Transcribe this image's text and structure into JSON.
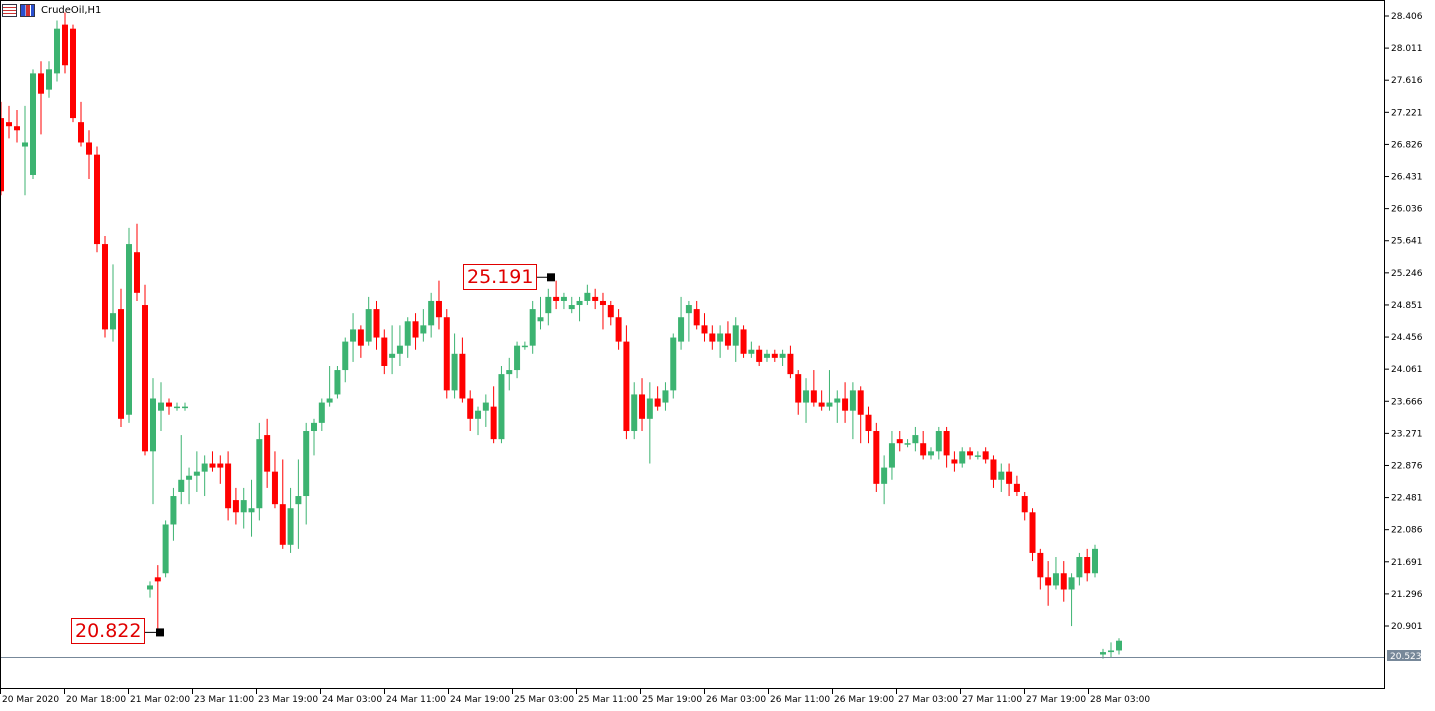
{
  "header": {
    "symbol": "CrudeOil,H1"
  },
  "annotations": {
    "high": "25.191",
    "low": "20.822"
  },
  "current_price": "20.523",
  "colors": {
    "bull": "#3cb371",
    "bear": "#ff0000",
    "grid": "#ffffff",
    "axis": "#000000",
    "price_line": "#778899"
  },
  "chart_data": {
    "type": "candlestick",
    "symbol": "CrudeOil",
    "timeframe": "H1",
    "y_ticks": [
      "28.406",
      "28.011",
      "27.616",
      "27.221",
      "26.826",
      "26.431",
      "26.036",
      "25.641",
      "25.246",
      "24.851",
      "24.456",
      "24.061",
      "23.666",
      "23.271",
      "22.876",
      "22.481",
      "22.086",
      "21.691",
      "21.296",
      "20.901"
    ],
    "x_ticks": [
      "20 Mar 2020",
      "20 Mar 18:00",
      "21 Mar 02:00",
      "23 Mar 11:00",
      "23 Mar 19:00",
      "24 Mar 03:00",
      "24 Mar 11:00",
      "24 Mar 19:00",
      "25 Mar 03:00",
      "25 Mar 11:00",
      "25 Mar 19:00",
      "26 Mar 03:00",
      "26 Mar 11:00",
      "26 Mar 19:00",
      "27 Mar 03:00",
      "27 Mar 11:00",
      "27 Mar 19:00",
      "28 Mar 03:00"
    ],
    "ylim": [
      20.45,
      28.5
    ],
    "high_marker": 25.191,
    "low_marker": 20.822,
    "last_price": 20.523,
    "candles": [
      [
        27.15,
        27.35,
        26.2,
        26.25
      ],
      [
        27.1,
        27.3,
        26.9,
        27.05
      ],
      [
        27.05,
        27.25,
        26.85,
        27.0
      ],
      [
        26.8,
        27.3,
        26.2,
        26.85
      ],
      [
        26.45,
        27.75,
        26.4,
        27.7
      ],
      [
        27.7,
        27.85,
        26.95,
        27.45
      ],
      [
        27.5,
        27.85,
        27.4,
        27.75
      ],
      [
        27.7,
        28.35,
        27.6,
        28.25
      ],
      [
        28.3,
        28.45,
        27.7,
        27.8
      ],
      [
        28.25,
        28.3,
        27.1,
        27.15
      ],
      [
        27.1,
        27.35,
        26.8,
        26.85
      ],
      [
        26.85,
        27.0,
        26.4,
        26.7
      ],
      [
        26.7,
        26.8,
        25.5,
        25.6
      ],
      [
        25.6,
        25.7,
        24.45,
        24.55
      ],
      [
        24.55,
        25.35,
        24.4,
        24.75
      ],
      [
        24.8,
        25.05,
        23.35,
        23.45
      ],
      [
        23.5,
        25.8,
        23.4,
        25.6
      ],
      [
        25.5,
        25.85,
        24.9,
        25.0
      ],
      [
        24.85,
        25.1,
        23.0,
        23.05
      ],
      [
        23.05,
        23.95,
        22.4,
        23.7
      ],
      [
        23.55,
        23.9,
        23.3,
        23.65
      ],
      [
        23.65,
        23.7,
        23.5,
        23.6
      ],
      [
        23.6,
        23.65,
        23.55,
        23.6
      ],
      [
        23.6,
        23.65,
        23.55,
        23.6
      ],
      [
        21.35,
        21.45,
        21.25,
        21.4
      ],
      [
        21.5,
        21.65,
        20.82,
        21.45
      ],
      [
        21.55,
        22.2,
        21.5,
        22.15
      ],
      [
        22.15,
        22.6,
        21.95,
        22.5
      ],
      [
        22.55,
        23.25,
        22.4,
        22.7
      ],
      [
        22.7,
        22.85,
        22.4,
        22.75
      ],
      [
        22.75,
        23.05,
        22.55,
        22.8
      ],
      [
        22.8,
        23.0,
        22.5,
        22.9
      ],
      [
        22.9,
        23.05,
        22.8,
        22.85
      ],
      [
        22.9,
        23.0,
        22.65,
        22.85
      ],
      [
        22.9,
        23.05,
        22.2,
        22.35
      ],
      [
        22.45,
        22.6,
        22.15,
        22.3
      ],
      [
        22.3,
        22.6,
        22.1,
        22.45
      ],
      [
        22.3,
        22.7,
        22.0,
        22.35
      ],
      [
        22.35,
        23.4,
        22.2,
        23.2
      ],
      [
        23.25,
        23.45,
        22.6,
        22.8
      ],
      [
        22.8,
        23.05,
        22.35,
        22.4
      ],
      [
        22.4,
        22.95,
        21.85,
        21.9
      ],
      [
        21.9,
        22.6,
        21.8,
        22.35
      ],
      [
        22.4,
        22.95,
        21.85,
        22.5
      ],
      [
        22.5,
        23.4,
        22.15,
        23.3
      ],
      [
        23.3,
        23.45,
        23.0,
        23.4
      ],
      [
        23.4,
        23.7,
        23.3,
        23.65
      ],
      [
        23.65,
        24.1,
        23.6,
        23.7
      ],
      [
        23.75,
        24.1,
        23.7,
        24.05
      ],
      [
        24.05,
        24.45,
        23.9,
        24.4
      ],
      [
        24.4,
        24.75,
        24.15,
        24.55
      ],
      [
        24.55,
        24.6,
        24.2,
        24.35
      ],
      [
        24.4,
        24.95,
        24.35,
        24.8
      ],
      [
        24.8,
        24.9,
        24.3,
        24.45
      ],
      [
        24.45,
        24.55,
        24.0,
        24.1
      ],
      [
        24.2,
        24.6,
        24.0,
        24.25
      ],
      [
        24.25,
        24.6,
        24.1,
        24.35
      ],
      [
        24.35,
        24.7,
        24.2,
        24.65
      ],
      [
        24.65,
        24.75,
        24.3,
        24.45
      ],
      [
        24.5,
        24.8,
        24.4,
        24.6
      ],
      [
        24.6,
        25.0,
        24.45,
        24.9
      ],
      [
        24.9,
        25.15,
        24.55,
        24.7
      ],
      [
        24.7,
        24.8,
        23.7,
        23.8
      ],
      [
        23.8,
        24.5,
        23.7,
        24.25
      ],
      [
        24.25,
        24.45,
        23.65,
        23.7
      ],
      [
        23.7,
        23.8,
        23.3,
        23.45
      ],
      [
        23.45,
        23.6,
        23.25,
        23.55
      ],
      [
        23.55,
        23.75,
        23.35,
        23.65
      ],
      [
        23.6,
        23.85,
        23.15,
        23.2
      ],
      [
        23.2,
        24.1,
        23.15,
        24.0
      ],
      [
        24.0,
        24.2,
        23.8,
        24.05
      ],
      [
        24.05,
        24.4,
        23.95,
        24.35
      ],
      [
        24.35,
        24.4,
        24.3,
        24.35
      ],
      [
        24.35,
        24.9,
        24.25,
        24.8
      ],
      [
        24.65,
        24.95,
        24.55,
        24.7
      ],
      [
        24.75,
        25.05,
        24.6,
        24.95
      ],
      [
        24.95,
        25.15,
        24.8,
        24.9
      ],
      [
        24.9,
        25.0,
        24.8,
        24.95
      ],
      [
        24.8,
        24.95,
        24.75,
        24.85
      ],
      [
        24.85,
        24.95,
        24.65,
        24.9
      ],
      [
        24.9,
        25.1,
        24.85,
        25.0
      ],
      [
        24.95,
        25.05,
        24.8,
        24.9
      ],
      [
        24.9,
        25.0,
        24.55,
        24.85
      ],
      [
        24.85,
        24.9,
        24.6,
        24.7
      ],
      [
        24.7,
        24.8,
        24.3,
        24.4
      ],
      [
        24.4,
        24.6,
        23.2,
        23.3
      ],
      [
        23.3,
        23.9,
        23.2,
        23.75
      ],
      [
        23.75,
        23.95,
        23.3,
        23.45
      ],
      [
        23.45,
        23.9,
        22.9,
        23.7
      ],
      [
        23.7,
        23.85,
        23.55,
        23.6
      ],
      [
        23.65,
        23.9,
        23.55,
        23.8
      ],
      [
        23.8,
        24.5,
        23.7,
        24.45
      ],
      [
        24.4,
        24.95,
        24.3,
        24.7
      ],
      [
        24.75,
        24.9,
        24.4,
        24.85
      ],
      [
        24.8,
        24.9,
        24.55,
        24.6
      ],
      [
        24.6,
        24.75,
        24.4,
        24.5
      ],
      [
        24.5,
        24.6,
        24.3,
        24.4
      ],
      [
        24.4,
        24.6,
        24.2,
        24.5
      ],
      [
        24.5,
        24.65,
        24.3,
        24.35
      ],
      [
        24.35,
        24.7,
        24.15,
        24.6
      ],
      [
        24.55,
        24.6,
        24.2,
        24.25
      ],
      [
        24.25,
        24.4,
        24.2,
        24.3
      ],
      [
        24.3,
        24.35,
        24.1,
        24.15
      ],
      [
        24.2,
        24.3,
        24.15,
        24.25
      ],
      [
        24.25,
        24.3,
        24.15,
        24.2
      ],
      [
        24.2,
        24.3,
        24.1,
        24.25
      ],
      [
        24.25,
        24.35,
        23.95,
        24.0
      ],
      [
        24.0,
        24.05,
        23.5,
        23.65
      ],
      [
        23.65,
        23.95,
        23.4,
        23.8
      ],
      [
        23.8,
        24.05,
        23.6,
        23.65
      ],
      [
        23.65,
        23.8,
        23.55,
        23.6
      ],
      [
        23.6,
        24.05,
        23.55,
        23.65
      ],
      [
        23.65,
        23.8,
        23.4,
        23.7
      ],
      [
        23.7,
        23.9,
        23.4,
        23.55
      ],
      [
        23.55,
        23.9,
        23.2,
        23.8
      ],
      [
        23.8,
        23.85,
        23.15,
        23.5
      ],
      [
        23.5,
        23.6,
        23.15,
        23.3
      ],
      [
        23.3,
        23.4,
        22.55,
        22.65
      ],
      [
        22.65,
        23.0,
        22.4,
        22.85
      ],
      [
        22.85,
        23.3,
        22.7,
        23.15
      ],
      [
        23.2,
        23.3,
        23.05,
        23.15
      ],
      [
        23.15,
        23.2,
        23.1,
        23.15
      ],
      [
        23.15,
        23.35,
        23.05,
        23.25
      ],
      [
        23.15,
        23.3,
        22.95,
        23.0
      ],
      [
        23.0,
        23.1,
        22.95,
        23.05
      ],
      [
        23.05,
        23.35,
        22.95,
        23.3
      ],
      [
        23.3,
        23.35,
        22.85,
        23.0
      ],
      [
        22.95,
        23.05,
        22.8,
        22.9
      ],
      [
        22.9,
        23.1,
        22.85,
        23.05
      ],
      [
        23.05,
        23.1,
        22.95,
        23.0
      ],
      [
        23.0,
        23.05,
        22.95,
        23.0
      ],
      [
        23.05,
        23.1,
        22.9,
        22.95
      ],
      [
        22.95,
        23.0,
        22.6,
        22.7
      ],
      [
        22.7,
        22.9,
        22.55,
        22.8
      ],
      [
        22.8,
        22.9,
        22.5,
        22.65
      ],
      [
        22.65,
        22.75,
        22.5,
        22.55
      ],
      [
        22.5,
        22.55,
        22.2,
        22.3
      ],
      [
        22.3,
        22.35,
        21.7,
        21.8
      ],
      [
        21.8,
        21.85,
        21.35,
        21.5
      ],
      [
        21.5,
        21.7,
        21.15,
        21.4
      ],
      [
        21.4,
        21.75,
        21.35,
        21.55
      ],
      [
        21.55,
        21.7,
        21.2,
        21.35
      ],
      [
        21.35,
        21.55,
        20.9,
        21.5
      ],
      [
        21.5,
        21.8,
        21.4,
        21.75
      ],
      [
        21.75,
        21.85,
        21.45,
        21.55
      ],
      [
        21.55,
        21.9,
        21.5,
        21.85
      ],
      [
        20.55,
        20.62,
        20.5,
        20.58
      ],
      [
        20.58,
        20.7,
        20.52,
        20.6
      ],
      [
        20.6,
        20.75,
        20.55,
        20.72
      ]
    ]
  }
}
